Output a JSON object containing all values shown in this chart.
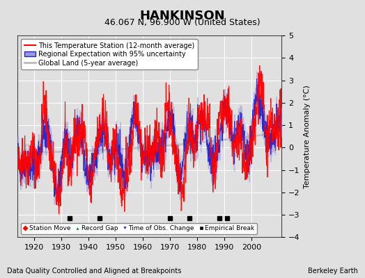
{
  "title": "HANKINSON",
  "subtitle": "46.067 N, 96.900 W (United States)",
  "ylabel": "Temperature Anomaly (°C)",
  "footer_left": "Data Quality Controlled and Aligned at Breakpoints",
  "footer_right": "Berkeley Earth",
  "xlim": [
    1914,
    2011
  ],
  "ylim": [
    -4,
    5
  ],
  "yticks": [
    -4,
    -3,
    -2,
    -1,
    0,
    1,
    2,
    3,
    4,
    5
  ],
  "xticks": [
    1920,
    1930,
    1940,
    1950,
    1960,
    1970,
    1980,
    1990,
    2000
  ],
  "bg_color": "#e0e0e0",
  "plot_bg_color": "#e0e0e0",
  "grid_color": "#ffffff",
  "empirical_breaks": [
    1933,
    1944,
    1970,
    1977,
    1988,
    1991
  ],
  "red_line_color": "#ff0000",
  "blue_line_color": "#2222cc",
  "blue_band_color": "#9999dd",
  "gray_line_color": "#bbbbbb",
  "title_fontsize": 13,
  "subtitle_fontsize": 9,
  "axis_fontsize": 8,
  "tick_fontsize": 8,
  "legend_label_0": "This Temperature Station (12-month average)",
  "legend_label_1": "Regional Expectation with 95% uncertainty",
  "legend_label_2": "Global Land (5-year average)"
}
